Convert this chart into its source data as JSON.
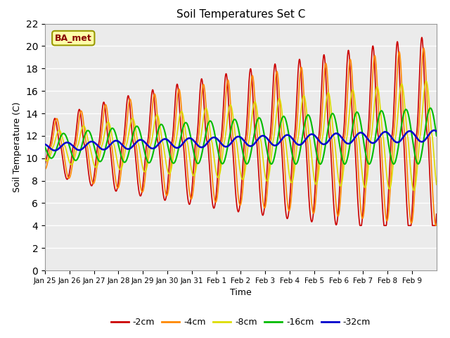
{
  "title": "Soil Temperatures Set C",
  "xlabel": "Time",
  "ylabel": "Soil Temperature (C)",
  "ylim": [
    0,
    22
  ],
  "yticks": [
    0,
    2,
    4,
    6,
    8,
    10,
    12,
    14,
    16,
    18,
    20,
    22
  ],
  "x_labels": [
    "Jan 25",
    "Jan 26",
    "Jan 27",
    "Jan 28",
    "Jan 29",
    "Jan 30",
    "Jan 31",
    "Feb 1",
    "Feb 2",
    "Feb 3",
    "Feb 4",
    "Feb 5",
    "Feb 6",
    "Feb 7",
    "Feb 8",
    "Feb 9"
  ],
  "series_colors": [
    "#cc0000",
    "#ff8800",
    "#dddd00",
    "#00bb00",
    "#0000cc"
  ],
  "series_labels": [
    "-2cm",
    "-4cm",
    "-8cm",
    "-16cm",
    "-32cm"
  ],
  "legend_label": "BA_met",
  "plot_bg": "#ebebeb"
}
